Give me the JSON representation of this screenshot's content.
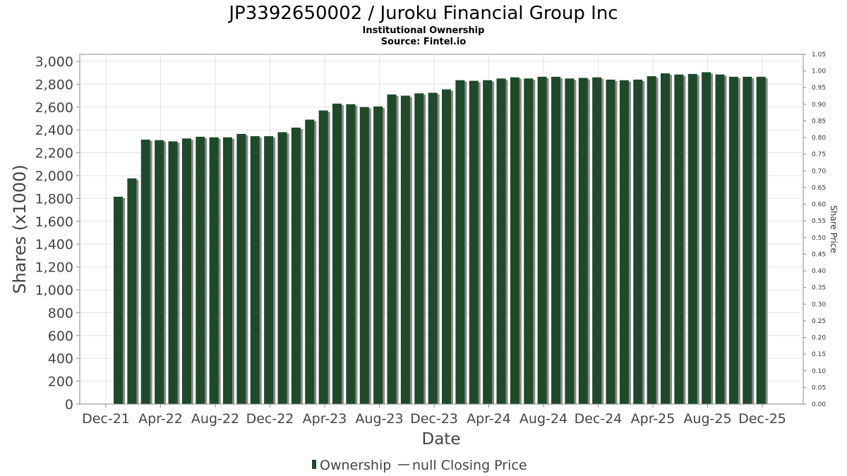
{
  "chart_data": {
    "type": "bar",
    "title": "JP3392650002 / Juroku Financial Group Inc",
    "subtitle": "Institutional Ownership",
    "source": "Source: Fintel.io",
    "xlabel": "Date",
    "ylabel": "Shares (x1000)",
    "y2label": "Share Price",
    "ylim": [
      0,
      3000
    ],
    "y2lim": [
      0,
      1.05
    ],
    "y_ticks": [
      "0",
      "200",
      "400",
      "600",
      "800",
      "1,000",
      "1,200",
      "1,400",
      "1,600",
      "1,800",
      "2,000",
      "2,200",
      "2,400",
      "2,600",
      "2,800",
      "3,000"
    ],
    "y2_ticks": [
      "0.00",
      "0.05",
      "0.10",
      "0.15",
      "0.20",
      "0.25",
      "0.30",
      "0.35",
      "0.40",
      "0.45",
      "0.50",
      "0.55",
      "0.60",
      "0.65",
      "0.70",
      "0.75",
      "0.80",
      "0.85",
      "0.90",
      "0.95",
      "1.00",
      "1.05"
    ],
    "x_ticks": [
      "Dec-21",
      "Apr-22",
      "Aug-22",
      "Dec-22",
      "Apr-23",
      "Aug-23",
      "Dec-23",
      "Apr-24",
      "Aug-24",
      "Dec-24",
      "Apr-25",
      "Aug-25",
      "Dec-25"
    ],
    "grid": true,
    "legend_position": "bottom",
    "series": [
      {
        "name": "Ownership",
        "color": "#1e4a2a",
        "values": [
          1815,
          1975,
          2315,
          2310,
          2300,
          2325,
          2340,
          2335,
          2335,
          2365,
          2345,
          2345,
          2380,
          2420,
          2490,
          2570,
          2630,
          2625,
          2600,
          2605,
          2710,
          2700,
          2720,
          2725,
          2755,
          2835,
          2830,
          2835,
          2850,
          2860,
          2850,
          2865,
          2865,
          2850,
          2855,
          2860,
          2840,
          2835,
          2840,
          2870,
          2895,
          2885,
          2890,
          2905,
          2885,
          2865,
          2865,
          2865
        ]
      }
    ],
    "legend": [
      "Ownership",
      "null Closing Price"
    ]
  }
}
